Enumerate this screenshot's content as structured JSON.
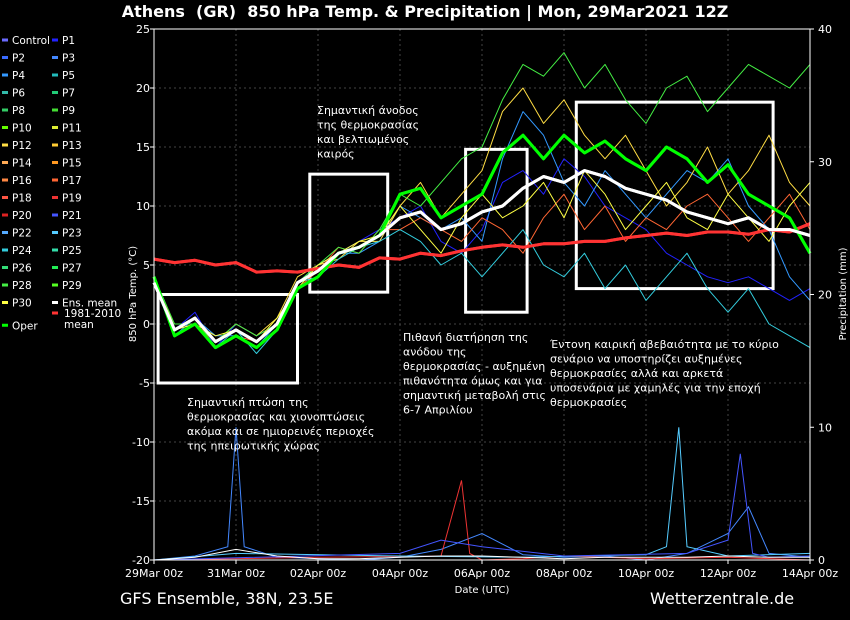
{
  "header": {
    "title": "Athens  (GR)  850 hPa Temp. & Precipitation | Mon, 29Mar2021 12Z"
  },
  "footer": {
    "left": "GFS Ensemble, 38N, 23.5E",
    "right": "Wetterzentrale.de"
  },
  "chart_data": {
    "type": "line",
    "xlabel": "Date (UTC)",
    "ylabel": "850 hPa Temp. (°C)",
    "y2label": "Precipitation (mm)",
    "ylim": [
      -20,
      25
    ],
    "y2lim": [
      0,
      40
    ],
    "yticks": [
      25,
      20,
      15,
      10,
      5,
      0,
      -5,
      -10,
      -15,
      -20
    ],
    "y2ticks": [
      40,
      30,
      20,
      10,
      0
    ],
    "x_tick_labels": [
      "29Mar 00z",
      "31Mar 00z",
      "02Apr 00z",
      "04Apr 00z",
      "06Apr 00z",
      "08Apr 00z",
      "10Apr 00z",
      "12Apr 00z",
      "14Apr 00z"
    ],
    "x_tick_days": [
      0,
      2,
      4,
      6,
      8,
      10,
      12,
      14,
      16
    ],
    "grid": true,
    "legend_position": "left",
    "legend": [
      {
        "name": "Control",
        "color": "#6a6aff"
      },
      {
        "name": "P1",
        "color": "#2222ff"
      },
      {
        "name": "P2",
        "color": "#3a6bff"
      },
      {
        "name": "P3",
        "color": "#4488ff"
      },
      {
        "name": "P4",
        "color": "#3399ff"
      },
      {
        "name": "P5",
        "color": "#22bbbb"
      },
      {
        "name": "P6",
        "color": "#33bbaa"
      },
      {
        "name": "P7",
        "color": "#22cc77"
      },
      {
        "name": "P8",
        "color": "#33cc66"
      },
      {
        "name": "P9",
        "color": "#44dd33"
      },
      {
        "name": "P10",
        "color": "#66ff00"
      },
      {
        "name": "P11",
        "color": "#ddee33"
      },
      {
        "name": "P12",
        "color": "#ffdd44"
      },
      {
        "name": "P13",
        "color": "#ffcc33"
      },
      {
        "name": "P14",
        "color": "#ffaa55"
      },
      {
        "name": "P15",
        "color": "#ff9922"
      },
      {
        "name": "P16",
        "color": "#ff8844"
      },
      {
        "name": "P17",
        "color": "#ff6633"
      },
      {
        "name": "P18",
        "color": "#ff5544"
      },
      {
        "name": "P19",
        "color": "#ee3333"
      },
      {
        "name": "P20",
        "color": "#dd2222"
      },
      {
        "name": "P21",
        "color": "#4455ff"
      },
      {
        "name": "P22",
        "color": "#55aaff"
      },
      {
        "name": "P23",
        "color": "#55ccff"
      },
      {
        "name": "P24",
        "color": "#33ccdd"
      },
      {
        "name": "P25",
        "color": "#33ddaa"
      },
      {
        "name": "P26",
        "color": "#33dd77"
      },
      {
        "name": "P27",
        "color": "#22ee55"
      },
      {
        "name": "P28",
        "color": "#44ee44"
      },
      {
        "name": "P29",
        "color": "#55ff22"
      },
      {
        "name": "P30",
        "color": "#ffff44"
      },
      {
        "name": "Ens. mean",
        "color": "#ffffff"
      },
      {
        "name": "Oper",
        "color": "#00ff00"
      },
      {
        "name": "1981-2010 mean",
        "color": "#ff3333"
      }
    ],
    "series": [
      {
        "name": "Ens. mean",
        "color": "#ffffff",
        "x": [
          0,
          0.5,
          1,
          1.5,
          2,
          2.5,
          3,
          3.5,
          4,
          4.5,
          5,
          5.5,
          6,
          6.5,
          7,
          7.5,
          8,
          8.5,
          9,
          9.5,
          10,
          10.5,
          11,
          11.5,
          12,
          12.5,
          13,
          13.5,
          14,
          14.5,
          15,
          15.5,
          16
        ],
        "y": [
          3.5,
          -0.5,
          0.5,
          -1.5,
          -0.5,
          -1.5,
          0,
          3.5,
          4.5,
          6,
          6.5,
          7.5,
          9,
          9.5,
          8,
          8.5,
          9.5,
          10,
          11.5,
          12.5,
          12,
          13,
          12.5,
          11.5,
          11,
          10.5,
          9.5,
          9,
          8.5,
          9,
          8,
          8,
          7.5
        ]
      },
      {
        "name": "Oper",
        "color": "#00ff00",
        "x": [
          0,
          0.5,
          1,
          1.5,
          2,
          2.5,
          3,
          3.5,
          4,
          4.5,
          5,
          5.5,
          6,
          6.5,
          7,
          7.5,
          8,
          8.5,
          9,
          9.5,
          10,
          10.5,
          11,
          11.5,
          12,
          12.5,
          13,
          13.5,
          14,
          14.5,
          15,
          15.5,
          16
        ],
        "y": [
          4,
          -1,
          0,
          -2,
          -1,
          -2,
          -0.5,
          3,
          4,
          6,
          6.5,
          7.5,
          11,
          11.5,
          9,
          10,
          11,
          14.5,
          16,
          14,
          16,
          14.5,
          15.5,
          14,
          13,
          15,
          14,
          12,
          13.5,
          11,
          10,
          9,
          6
        ]
      },
      {
        "name": "1981-2010 mean",
        "color": "#ff3333",
        "x": [
          0,
          0.5,
          1,
          1.5,
          2,
          2.5,
          3,
          3.5,
          4,
          4.5,
          5,
          5.5,
          6,
          6.5,
          7,
          7.5,
          8,
          8.5,
          9,
          9.5,
          10,
          10.5,
          11,
          11.5,
          12,
          12.5,
          13,
          13.5,
          14,
          14.5,
          15,
          15.5,
          16
        ],
        "y": [
          5.5,
          5.2,
          5.4,
          5,
          5.2,
          4.4,
          4.5,
          4.4,
          4.7,
          5,
          4.8,
          5.6,
          5.5,
          6,
          5.8,
          6.2,
          6.5,
          6.7,
          6.5,
          6.8,
          6.8,
          7,
          7,
          7.3,
          7.5,
          7.7,
          7.5,
          7.8,
          7.8,
          7.6,
          8,
          7.8,
          8.5
        ]
      },
      {
        "name": "P1",
        "color": "#2222ff",
        "x": [
          0,
          0.5,
          1,
          1.5,
          2,
          2.5,
          3,
          3.5,
          4,
          4.5,
          5,
          5.5,
          6,
          6.5,
          7,
          7.5,
          8,
          8.5,
          9,
          9.5,
          10,
          10.5,
          11,
          11.5,
          12,
          12.5,
          13,
          13.5,
          14,
          14.5,
          15,
          15.5,
          16
        ],
        "y": [
          3.5,
          -0.5,
          1,
          -2,
          0,
          -1,
          0,
          3,
          4,
          6,
          7,
          8,
          9,
          10,
          7,
          6,
          8,
          12,
          13,
          11,
          14,
          12.5,
          10,
          9,
          8,
          6,
          5,
          4,
          3.5,
          4,
          3,
          2,
          3
        ]
      },
      {
        "name": "P4",
        "color": "#3399ff",
        "x": [
          0,
          0.5,
          1,
          1.5,
          2,
          2.5,
          3,
          3.5,
          4,
          4.5,
          5,
          5.5,
          6,
          6.5,
          7,
          7.5,
          8,
          8.5,
          9,
          9.5,
          10,
          10.5,
          11,
          11.5,
          12,
          12.5,
          13,
          13.5,
          14,
          14.5,
          15,
          15.5,
          16
        ],
        "y": [
          3.5,
          -1,
          0.5,
          -1,
          -1,
          -2,
          0,
          3.5,
          5,
          6,
          6,
          7,
          10,
          9,
          8,
          9,
          7,
          14,
          18,
          16,
          12,
          10,
          13,
          11,
          9,
          11,
          13,
          12,
          14,
          10,
          8,
          4,
          2
        ]
      },
      {
        "name": "P12",
        "color": "#ffdd44",
        "x": [
          0,
          0.5,
          1,
          1.5,
          2,
          2.5,
          3,
          3.5,
          4,
          4.5,
          5,
          5.5,
          6,
          6.5,
          7,
          7.5,
          8,
          8.5,
          9,
          9.5,
          10,
          10.5,
          11,
          11.5,
          12,
          12.5,
          13,
          13.5,
          14,
          14.5,
          15,
          15.5,
          16
        ],
        "y": [
          3.5,
          0,
          0,
          -1.5,
          0,
          -1,
          0.5,
          4,
          5,
          5.5,
          7,
          7,
          10,
          12,
          9,
          11,
          13,
          18,
          20,
          17,
          19,
          16,
          14,
          16,
          13,
          10,
          12,
          15,
          11,
          13,
          16,
          12,
          10
        ]
      },
      {
        "name": "P17",
        "color": "#ff6633",
        "x": [
          0,
          0.5,
          1,
          1.5,
          2,
          2.5,
          3,
          3.5,
          4,
          4.5,
          5,
          5.5,
          6,
          6.5,
          7,
          7.5,
          8,
          8.5,
          9,
          9.5,
          10,
          10.5,
          11,
          11.5,
          12,
          12.5,
          13,
          13.5,
          14,
          14.5,
          15,
          15.5,
          16
        ],
        "y": [
          4,
          -0.5,
          0.5,
          -2,
          -1,
          -1.5,
          0,
          3,
          4.5,
          6.5,
          6,
          8,
          8,
          9,
          8,
          7,
          9,
          8,
          6,
          9,
          11,
          8,
          10,
          7,
          9,
          8,
          10,
          11,
          9,
          7,
          9,
          11,
          8
        ]
      },
      {
        "name": "P24",
        "color": "#33ccdd",
        "x": [
          0,
          0.5,
          1,
          1.5,
          2,
          2.5,
          3,
          3.5,
          4,
          4.5,
          5,
          5.5,
          6,
          6.5,
          7,
          7.5,
          8,
          8.5,
          9,
          9.5,
          10,
          10.5,
          11,
          11.5,
          12,
          12.5,
          13,
          13.5,
          14,
          14.5,
          15,
          15.5,
          16
        ],
        "y": [
          3.5,
          -1,
          0,
          -2,
          -0.5,
          -2.5,
          -0.5,
          3.5,
          4,
          5.5,
          6.5,
          7,
          8,
          7,
          5,
          6,
          4,
          6,
          8,
          5,
          4,
          6,
          3,
          5,
          2,
          4,
          6,
          3,
          1,
          3,
          0,
          -1,
          -2
        ]
      },
      {
        "name": "P28",
        "color": "#44ee44",
        "x": [
          0,
          0.5,
          1,
          1.5,
          2,
          2.5,
          3,
          3.5,
          4,
          4.5,
          5,
          5.5,
          6,
          6.5,
          7,
          7.5,
          8,
          8.5,
          9,
          9.5,
          10,
          10.5,
          11,
          11.5,
          12,
          12.5,
          13,
          13.5,
          14,
          14.5,
          15,
          15.5,
          16
        ],
        "y": [
          4,
          0,
          0,
          -1.5,
          0,
          -1,
          0,
          3.5,
          5,
          6.5,
          6,
          8,
          11,
          10,
          12,
          14,
          15,
          19,
          22,
          21,
          23,
          20,
          22,
          19,
          17,
          20,
          21,
          18,
          20,
          22,
          21,
          20,
          22
        ]
      },
      {
        "name": "P30",
        "color": "#ffff44",
        "x": [
          0,
          0.5,
          1,
          1.5,
          2,
          2.5,
          3,
          3.5,
          4,
          4.5,
          5,
          5.5,
          6,
          6.5,
          7,
          7.5,
          8,
          8.5,
          9,
          9.5,
          10,
          10.5,
          11,
          11.5,
          12,
          12.5,
          13,
          13.5,
          14,
          14.5,
          15,
          15.5,
          16
        ],
        "y": [
          3.5,
          -0.5,
          0,
          -1,
          -0.5,
          -1.5,
          0.5,
          3,
          5,
          6,
          7,
          7.5,
          10,
          8,
          6,
          9,
          11,
          9,
          10,
          12,
          9,
          13,
          11,
          8,
          10,
          12,
          9,
          8,
          11,
          9,
          7,
          10,
          12
        ]
      }
    ],
    "precip_series": [
      {
        "name": "P3",
        "color": "#4488ff",
        "x": [
          0,
          1,
          1.8,
          2,
          2.2,
          3,
          5,
          6,
          7,
          8,
          9,
          10,
          11,
          12,
          13,
          14,
          14.5,
          15,
          16
        ],
        "y": [
          0,
          0.3,
          1,
          10,
          1,
          0.2,
          0,
          0.2,
          0.8,
          2,
          0.4,
          0.2,
          0.3,
          0,
          0.5,
          2,
          4,
          0.5,
          0.2
        ]
      },
      {
        "name": "P19",
        "color": "#ee3333",
        "x": [
          0,
          4,
          7,
          7.5,
          7.7,
          8,
          9,
          10,
          12,
          14,
          16
        ],
        "y": [
          0,
          0.2,
          0.3,
          6,
          0.5,
          0,
          0.1,
          0.3,
          0.1,
          0.2,
          0
        ]
      },
      {
        "name": "P23",
        "color": "#55ccff",
        "x": [
          0,
          2,
          6,
          9,
          12,
          12.5,
          12.8,
          13,
          14,
          16
        ],
        "y": [
          0,
          0.5,
          0.3,
          0.2,
          0.4,
          1,
          10,
          1,
          0.3,
          0.5
        ]
      },
      {
        "name": "P21",
        "color": "#4455ff",
        "x": [
          0,
          6,
          7,
          8,
          10,
          13,
          14,
          14.3,
          14.6,
          15,
          16
        ],
        "y": [
          0,
          0.5,
          1.5,
          1,
          0.3,
          0.5,
          1.5,
          8,
          0.5,
          0.2,
          0.3
        ]
      },
      {
        "name": "Ens. mean",
        "color": "#ffffff",
        "x": [
          0,
          1,
          2,
          3,
          4,
          5,
          6,
          7,
          8,
          9,
          10,
          11,
          12,
          13,
          14,
          15,
          16
        ],
        "y": [
          0,
          0.2,
          0.8,
          0.3,
          0.1,
          0.1,
          0.2,
          0.3,
          0.3,
          0.2,
          0.1,
          0.2,
          0.2,
          0.2,
          0.3,
          0.2,
          0.2
        ]
      }
    ],
    "annotation_boxes": [
      {
        "x0": 0.1,
        "x1": 3.5,
        "y0": -5,
        "y1": 2.5
      },
      {
        "x0": 3.8,
        "x1": 5.7,
        "y0": 2.7,
        "y1": 12.7
      },
      {
        "x0": 7.6,
        "x1": 9.1,
        "y0": 1.0,
        "y1": 14.8
      },
      {
        "x0": 10.3,
        "x1": 15.1,
        "y0": 3.0,
        "y1": 18.8
      }
    ],
    "annotations": [
      {
        "lines": [
          "Σημαντική πτώση της",
          "θερμοκρασίας και χιονοπτώσεις",
          "ακόμα και σε ημιορεινές περιοχές",
          "της ηπειρωτικής χώρας"
        ]
      },
      {
        "lines": [
          "Σημαντική άνοδος",
          "της θερμοκρασίας",
          "και βελτιωμένος",
          "καιρός"
        ]
      },
      {
        "lines": [
          "Πιθανή διατήρηση της",
          "ανόδου της",
          "θερμοκρασίας - αυξημένη",
          "πιθανότητα όμως και για",
          "σημαντική μεταβολή στις",
          "6-7 Απριλίου"
        ]
      },
      {
        "lines": [
          "Έντονη καιρική αβεβαιότητα με το κύριο",
          "σενάριο να υποστηρίζει αυξημένες",
          "θερμοκρασίες αλλά και αρκετά",
          "υποσενάρια με χαμηλές για την εποχή",
          "θερμοκρασίες"
        ]
      }
    ]
  }
}
